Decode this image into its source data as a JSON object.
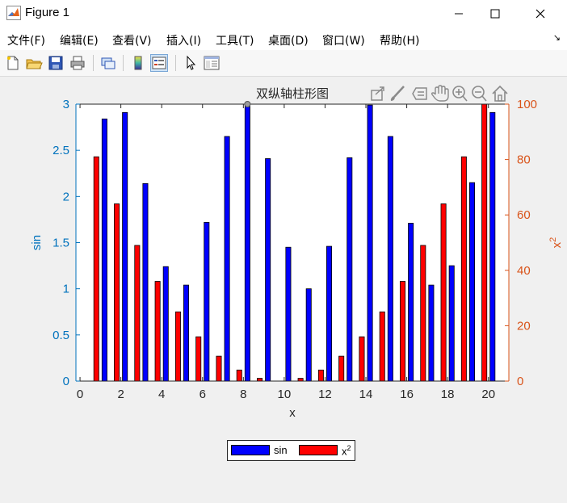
{
  "window": {
    "title": "Figure 1"
  },
  "menu": {
    "items": [
      "文件(F)",
      "编辑(E)",
      "查看(V)",
      "插入(I)",
      "工具(T)",
      "桌面(D)",
      "窗口(W)",
      "帮助(H)"
    ]
  },
  "toolbar": {
    "icons": [
      "new-figure-icon",
      "open-icon",
      "save-icon",
      "print-icon",
      "link-icon",
      "colorbar-icon",
      "legend-icon",
      "pointer-icon",
      "property-inspector-icon"
    ]
  },
  "axes_toolbar": {
    "icons": [
      "export-icon",
      "brush-icon",
      "data-tip-icon",
      "pan-icon",
      "zoom-in-icon",
      "zoom-out-icon",
      "home-icon"
    ]
  },
  "colors": {
    "left_axis": "#0072bd",
    "right_axis": "#d95319",
    "sin_bar": "#0000ff",
    "sq_bar": "#ff0000"
  },
  "chart_data": {
    "type": "bar",
    "title": "双纵轴柱形图",
    "xlabel": "x",
    "ylabel_left": "sin",
    "ylabel_right": "x",
    "ylabel_right_sup": "2",
    "xlim": [
      -0.2,
      21
    ],
    "ylim_left": [
      0,
      3
    ],
    "ylim_right": [
      0,
      100
    ],
    "xticks": [
      0,
      2,
      4,
      6,
      8,
      10,
      12,
      14,
      16,
      18,
      20
    ],
    "yticks_left": [
      0,
      0.5,
      1,
      1.5,
      2,
      2.5,
      3
    ],
    "yticks_right": [
      0,
      20,
      40,
      60,
      80,
      100
    ],
    "legend": {
      "placement": "bottom",
      "entries": [
        {
          "name": "sin"
        },
        {
          "name": "x",
          "sup": "2"
        }
      ]
    },
    "series": [
      {
        "name": "sin",
        "axis": "left",
        "x": [
          1.2,
          2.2,
          3.2,
          4.2,
          5.2,
          6.2,
          7.2,
          8.2,
          9.2,
          10.2,
          11.2,
          12.2,
          13.2,
          14.2,
          15.2,
          16.2,
          17.2,
          18.2,
          19.2,
          20.2
        ],
        "values": [
          2.84,
          2.91,
          2.14,
          1.24,
          1.04,
          1.72,
          2.65,
          2.99,
          2.41,
          1.45,
          1.0,
          1.46,
          2.42,
          2.99,
          2.65,
          1.71,
          1.04,
          1.25,
          2.15,
          2.91
        ]
      },
      {
        "name": "x2",
        "axis": "right",
        "x": [
          0.8,
          1.8,
          2.8,
          3.8,
          4.8,
          5.8,
          6.8,
          7.8,
          8.8,
          9.8,
          10.8,
          11.8,
          12.8,
          13.8,
          14.8,
          15.8,
          16.8,
          17.8,
          18.8,
          19.8
        ],
        "values": [
          81,
          64,
          49,
          36,
          25,
          16,
          9,
          4,
          1,
          0,
          1,
          4,
          9,
          16,
          25,
          36,
          49,
          64,
          81,
          100
        ]
      }
    ]
  }
}
